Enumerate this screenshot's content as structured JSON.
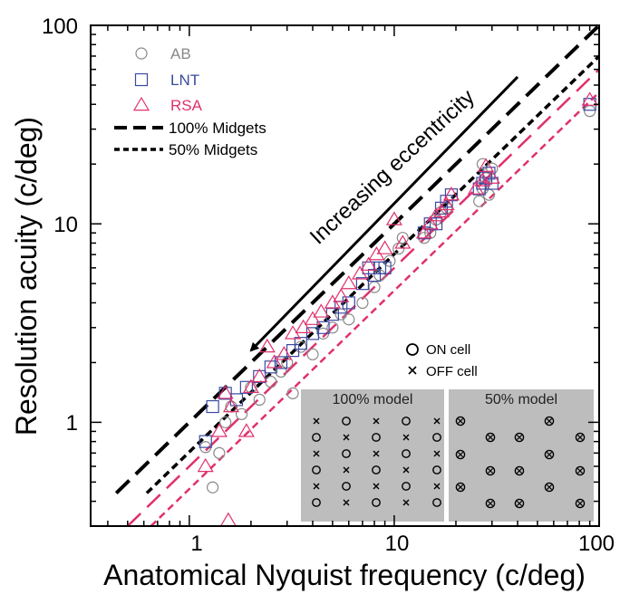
{
  "chart_data": {
    "type": "scatter",
    "title": "",
    "xlabel": "Anatomical Nyquist frequency (c/deg)",
    "ylabel": "Resolution acuity (c/deg)",
    "xscale": "log",
    "yscale": "log",
    "xlim": [
      0.33,
      100
    ],
    "ylim": [
      0.3,
      100
    ],
    "x_tick_labels": [
      "1",
      "10",
      "100"
    ],
    "y_tick_labels": [
      "1",
      "10",
      "100"
    ],
    "grid": false,
    "legend_position": "top-left",
    "annotation": "Increasing eccentricity",
    "series": [
      {
        "name": "AB",
        "marker": "circle",
        "color": "#888888",
        "points": [
          [
            1.3,
            0.47
          ],
          [
            1.2,
            0.75
          ],
          [
            1.4,
            0.7
          ],
          [
            1.5,
            1.0
          ],
          [
            1.6,
            1.2
          ],
          [
            1.8,
            1.1
          ],
          [
            2.0,
            1.5
          ],
          [
            2.2,
            1.3
          ],
          [
            2.5,
            1.6
          ],
          [
            2.8,
            1.8
          ],
          [
            3.0,
            2.0
          ],
          [
            3.2,
            1.4
          ],
          [
            3.5,
            2.4
          ],
          [
            4.0,
            2.2
          ],
          [
            4.5,
            2.8
          ],
          [
            5.0,
            3.0
          ],
          [
            5.5,
            3.5
          ],
          [
            6.0,
            3.3
          ],
          [
            7.0,
            4.0
          ],
          [
            8.0,
            4.8
          ],
          [
            8.5,
            5.5
          ],
          [
            9.5,
            6.5
          ],
          [
            10.5,
            7.5
          ],
          [
            11.0,
            8.5
          ],
          [
            14.0,
            8.5
          ],
          [
            15.0,
            9.0
          ],
          [
            16.0,
            10.5
          ],
          [
            17.0,
            11.5
          ],
          [
            18.0,
            12.0
          ],
          [
            26.0,
            13.0
          ],
          [
            27.0,
            15.0
          ],
          [
            28.0,
            17.0
          ],
          [
            30.0,
            19.0
          ],
          [
            27.0,
            20.0
          ],
          [
            29.0,
            14.0
          ],
          [
            90.0,
            37.0
          ]
        ]
      },
      {
        "name": "LNT",
        "marker": "square",
        "color": "#3a4aa0",
        "points": [
          [
            1.2,
            0.8
          ],
          [
            1.3,
            1.2
          ],
          [
            1.5,
            1.4
          ],
          [
            1.7,
            1.3
          ],
          [
            1.9,
            1.5
          ],
          [
            2.2,
            1.7
          ],
          [
            2.5,
            1.9
          ],
          [
            2.8,
            2.0
          ],
          [
            3.2,
            2.3
          ],
          [
            3.5,
            2.5
          ],
          [
            4.0,
            2.8
          ],
          [
            4.5,
            3.0
          ],
          [
            5.0,
            3.5
          ],
          [
            5.5,
            3.8
          ],
          [
            6.0,
            4.0
          ],
          [
            7.0,
            5.0
          ],
          [
            7.5,
            6.0
          ],
          [
            8.0,
            5.5
          ],
          [
            8.5,
            6.0
          ],
          [
            9.0,
            6.0
          ],
          [
            14.0,
            9.0
          ],
          [
            15.0,
            10.0
          ],
          [
            16.0,
            10.0
          ],
          [
            17.0,
            12.0
          ],
          [
            18.0,
            13.0
          ],
          [
            19.0,
            14.0
          ],
          [
            26.0,
            15.0
          ],
          [
            27.0,
            16.0
          ],
          [
            28.0,
            17.0
          ],
          [
            29.0,
            18.0
          ],
          [
            30.0,
            16.0
          ],
          [
            90.0,
            40.0
          ]
        ]
      },
      {
        "name": "RSA",
        "marker": "triangle",
        "color": "#e0306e",
        "points": [
          [
            1.2,
            0.6
          ],
          [
            1.4,
            0.9
          ],
          [
            1.5,
            1.4
          ],
          [
            1.6,
            1.2
          ],
          [
            1.55,
            0.32
          ],
          [
            1.9,
            0.9
          ],
          [
            2.0,
            1.5
          ],
          [
            2.2,
            1.7
          ],
          [
            2.4,
            2.4
          ],
          [
            2.6,
            2.0
          ],
          [
            2.9,
            2.2
          ],
          [
            3.2,
            2.8
          ],
          [
            3.6,
            3.0
          ],
          [
            4.0,
            3.3
          ],
          [
            4.4,
            3.6
          ],
          [
            5.0,
            4.0
          ],
          [
            5.5,
            4.3
          ],
          [
            6.0,
            5.0
          ],
          [
            6.8,
            5.6
          ],
          [
            7.5,
            6.2
          ],
          [
            8.2,
            7.0
          ],
          [
            9.0,
            7.5
          ],
          [
            10.0,
            10.5
          ],
          [
            11.0,
            8.0
          ],
          [
            14.0,
            9.0
          ],
          [
            15.0,
            10.0
          ],
          [
            16.0,
            11.0
          ],
          [
            17.0,
            11.5
          ],
          [
            18.0,
            12.5
          ],
          [
            19.0,
            14.0
          ],
          [
            25.0,
            15.0
          ],
          [
            27.0,
            16.5
          ],
          [
            28.0,
            19.5
          ],
          [
            30.0,
            17.0
          ],
          [
            90.0,
            42.0
          ]
        ]
      }
    ],
    "model_lines": [
      {
        "name": "100% Midgets",
        "style": "long-dash",
        "color": "#000000",
        "points": [
          [
            0.44,
            0.44
          ],
          [
            100,
            100
          ]
        ]
      },
      {
        "name": "",
        "style": "long-dash",
        "color": "#e0306e",
        "points": [
          [
            0.5,
            0.3
          ],
          [
            100,
            60
          ]
        ]
      },
      {
        "name": "50% Midgets",
        "style": "short-dash",
        "color": "#000000",
        "points": [
          [
            0.62,
            0.44
          ],
          [
            100,
            70
          ]
        ]
      },
      {
        "name": "",
        "style": "short-dash",
        "color": "#e0306e",
        "points": [
          [
            0.65,
            0.3
          ],
          [
            100,
            46
          ]
        ]
      }
    ],
    "arrow": {
      "from": [
        40,
        55
      ],
      "to": [
        2.0,
        2.3
      ]
    }
  },
  "legend": {
    "ab": "AB",
    "lnt": "LNT",
    "rsa": "RSA",
    "midgets100": "100% Midgets",
    "midgets50": "50% Midgets",
    "ab_color": "#888888",
    "lnt_color": "#3a4aa0",
    "rsa_color": "#e0306e"
  },
  "inset": {
    "on_cell": "ON cell",
    "off_cell": "OFF cell",
    "model_100": "100% model",
    "model_50": "50% model",
    "panel_color": "#bdbdbd"
  }
}
